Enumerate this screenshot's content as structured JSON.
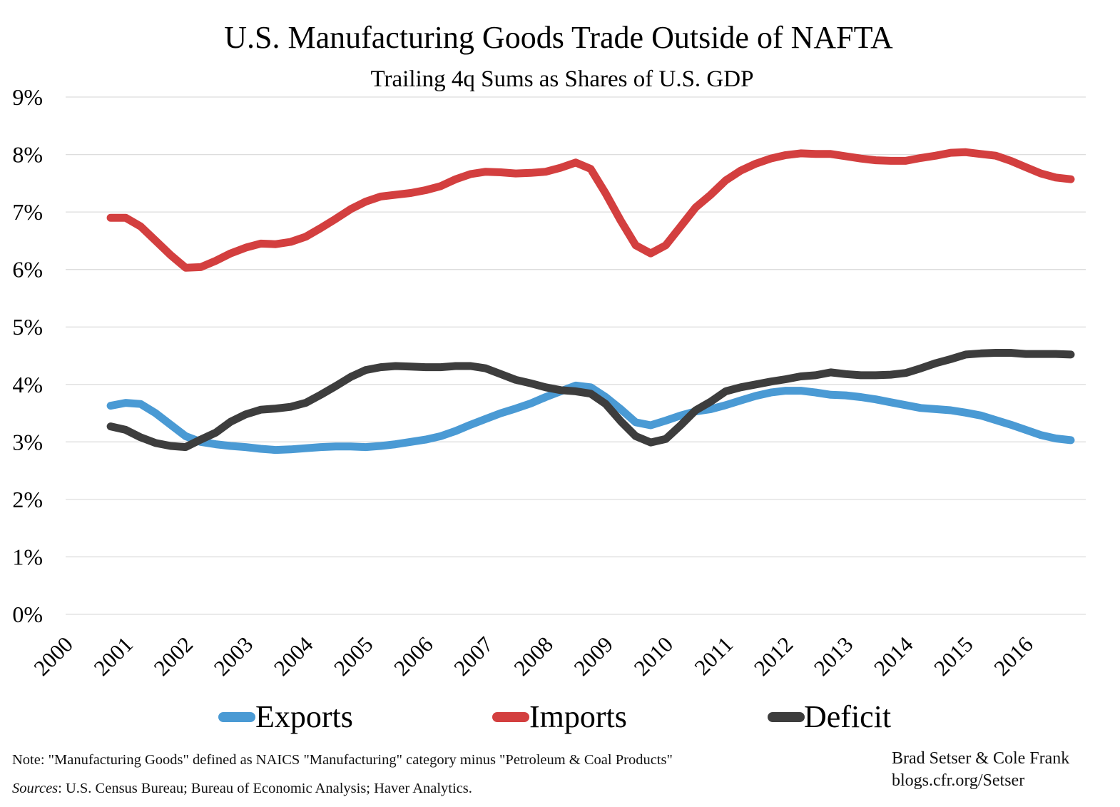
{
  "colors": {
    "exports": "#4a9ad4",
    "imports": "#d33f3f",
    "deficit": "#3d3d3d",
    "grid": "#dddddd"
  },
  "note": "Note: \"Manufacturing Goods\" defined as NAICS \"Manufacturing\" category minus \"Petroleum & Coal Products\"",
  "sources": {
    "label": "Sources",
    "text": ": U.S. Census Bureau; Bureau of Economic Analysis; Haver Analytics."
  },
  "credit": {
    "authors": "Brad Setser & Cole Frank",
    "site": "blogs.cfr.org/Setser"
  },
  "chart_data": {
    "type": "line",
    "title": "U.S. Manufacturing Goods Trade Outside of NAFTA",
    "subtitle": "Trailing 4q Sums as Shares of U.S. GDP",
    "xlabel": "",
    "ylabel": "",
    "ylim": [
      0,
      9
    ],
    "xlim": [
      2000,
      2017
    ],
    "yticks": [
      "0%",
      "1%",
      "2%",
      "3%",
      "4%",
      "5%",
      "6%",
      "7%",
      "8%",
      "9%"
    ],
    "xticks": [
      "2000",
      "2001",
      "2002",
      "2003",
      "2004",
      "2005",
      "2006",
      "2007",
      "2008",
      "2009",
      "2010",
      "2011",
      "2012",
      "2013",
      "2014",
      "2015",
      "2016"
    ],
    "grid": true,
    "legend_position": "bottom",
    "x": [
      2000.75,
      2001.0,
      2001.25,
      2001.5,
      2001.75,
      2002.0,
      2002.25,
      2002.5,
      2002.75,
      2003.0,
      2003.25,
      2003.5,
      2003.75,
      2004.0,
      2004.25,
      2004.5,
      2004.75,
      2005.0,
      2005.25,
      2005.5,
      2005.75,
      2006.0,
      2006.25,
      2006.5,
      2006.75,
      2007.0,
      2007.25,
      2007.5,
      2007.75,
      2008.0,
      2008.25,
      2008.5,
      2008.75,
      2009.0,
      2009.25,
      2009.5,
      2009.75,
      2010.0,
      2010.25,
      2010.5,
      2010.75,
      2011.0,
      2011.25,
      2011.5,
      2011.75,
      2012.0,
      2012.25,
      2012.5,
      2012.75,
      2013.0,
      2013.25,
      2013.5,
      2013.75,
      2014.0,
      2014.25,
      2014.5,
      2014.75,
      2015.0,
      2015.25,
      2015.5,
      2015.75,
      2016.0,
      2016.25,
      2016.5,
      2016.75
    ],
    "series": [
      {
        "name": "Exports",
        "key": "exports",
        "values": [
          3.63,
          3.68,
          3.66,
          3.5,
          3.3,
          3.1,
          3.0,
          2.96,
          2.93,
          2.91,
          2.88,
          2.86,
          2.87,
          2.89,
          2.91,
          2.92,
          2.92,
          2.91,
          2.93,
          2.96,
          3.0,
          3.04,
          3.1,
          3.19,
          3.3,
          3.4,
          3.5,
          3.58,
          3.67,
          3.78,
          3.88,
          3.98,
          3.95,
          3.78,
          3.57,
          3.34,
          3.29,
          3.37,
          3.46,
          3.53,
          3.57,
          3.64,
          3.72,
          3.8,
          3.86,
          3.89,
          3.89,
          3.86,
          3.82,
          3.81,
          3.78,
          3.74,
          3.69,
          3.64,
          3.59,
          3.57,
          3.55,
          3.51,
          3.46,
          3.38,
          3.3,
          3.21,
          3.12,
          3.06,
          3.03
        ]
      },
      {
        "name": "Imports",
        "key": "imports",
        "values": [
          6.9,
          6.9,
          6.75,
          6.5,
          6.25,
          6.03,
          6.04,
          6.15,
          6.28,
          6.38,
          6.45,
          6.44,
          6.48,
          6.57,
          6.72,
          6.88,
          7.05,
          7.18,
          7.27,
          7.3,
          7.33,
          7.38,
          7.45,
          7.57,
          7.66,
          7.7,
          7.69,
          7.67,
          7.68,
          7.7,
          7.77,
          7.86,
          7.75,
          7.32,
          6.85,
          6.42,
          6.28,
          6.42,
          6.75,
          7.08,
          7.3,
          7.55,
          7.72,
          7.84,
          7.93,
          7.99,
          8.02,
          8.01,
          8.01,
          7.97,
          7.93,
          7.9,
          7.89,
          7.89,
          7.94,
          7.98,
          8.03,
          8.04,
          8.01,
          7.98,
          7.89,
          7.78,
          7.67,
          7.6,
          7.57
        ]
      },
      {
        "name": "Deficit",
        "key": "deficit",
        "values": [
          3.27,
          3.21,
          3.08,
          2.98,
          2.93,
          2.91,
          3.04,
          3.16,
          3.35,
          3.48,
          3.56,
          3.58,
          3.61,
          3.68,
          3.82,
          3.97,
          4.13,
          4.25,
          4.3,
          4.32,
          4.31,
          4.3,
          4.3,
          4.32,
          4.32,
          4.28,
          4.18,
          4.08,
          4.02,
          3.95,
          3.9,
          3.88,
          3.84,
          3.66,
          3.36,
          3.1,
          2.99,
          3.05,
          3.29,
          3.55,
          3.7,
          3.88,
          3.95,
          4.0,
          4.05,
          4.09,
          4.14,
          4.16,
          4.21,
          4.18,
          4.16,
          4.16,
          4.17,
          4.2,
          4.28,
          4.37,
          4.44,
          4.52,
          4.54,
          4.55,
          4.55,
          4.53,
          4.53,
          4.53,
          4.52
        ]
      }
    ]
  }
}
